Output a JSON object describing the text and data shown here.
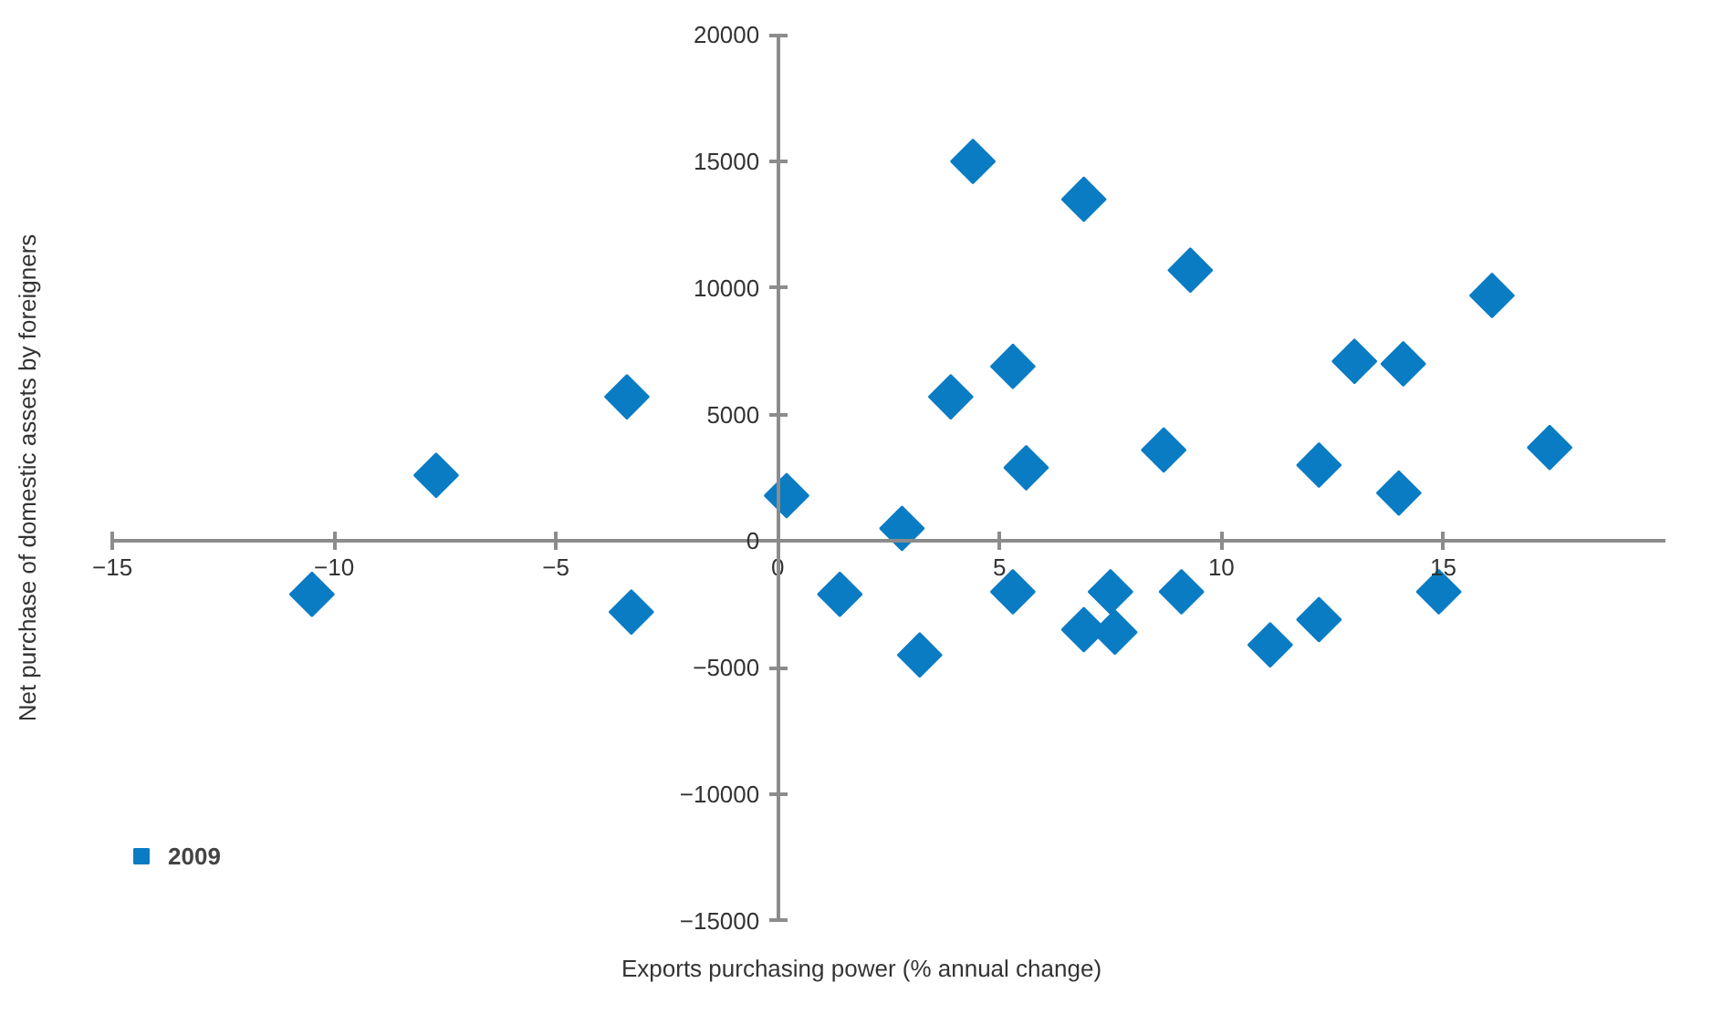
{
  "chart_data": {
    "type": "scatter",
    "xlabel": "Exports purchasing power (% annual change)",
    "ylabel": "Net purchase of domestic assets by foreigners",
    "xlim": [
      -15,
      20
    ],
    "xticks": [
      -15,
      -10,
      -5,
      0,
      5,
      10,
      15
    ],
    "ylim": [
      -15000,
      20000
    ],
    "yticks": [
      -15000,
      -10000,
      -5000,
      0,
      5000,
      10000,
      15000,
      20000
    ],
    "grid": false,
    "legend": "bottom left",
    "marker": "diamond",
    "series": [
      {
        "name": "2009",
        "color": "#0a7cc4",
        "x": [
          -10.5,
          -7.7,
          -3.4,
          -3.3,
          0.2,
          1.4,
          2.8,
          3.2,
          3.9,
          4.4,
          5.3,
          5.3,
          5.6,
          6.9,
          6.9,
          7.5,
          7.6,
          8.7,
          9.1,
          9.3,
          11.1,
          12.2,
          12.2,
          13.0,
          14.1,
          14.0,
          14.9,
          16.1,
          17.4
        ],
        "values": [
          -2100,
          2600,
          5700,
          -2800,
          1800,
          -2100,
          500,
          -4500,
          5700,
          15000,
          6900,
          -2000,
          2900,
          13500,
          -3500,
          -2000,
          -3600,
          3600,
          -2000,
          10700,
          -4100,
          3000,
          -3100,
          7100,
          7000,
          1900,
          -2000,
          9700,
          3700
        ]
      }
    ]
  }
}
